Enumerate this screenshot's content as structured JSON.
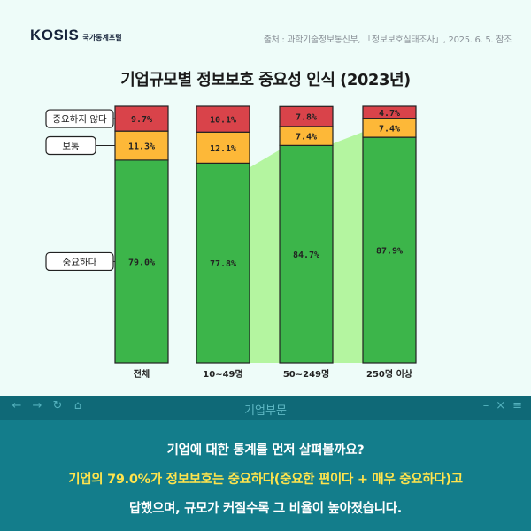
{
  "header": {
    "logo_main": "KOSIS",
    "logo_sub": "국가통계포털",
    "source": "출처 : 과학기술정보통신부, 「정보보호실태조사」, 2025. 6. 5. 참조"
  },
  "chart_data": {
    "type": "bar",
    "stacked": true,
    "title": "기업규모별 정보보호 중요성 인식 (2023년)",
    "categories": [
      "전체",
      "10~49명",
      "50~249명",
      "250명 이상"
    ],
    "series": [
      {
        "name": "중요하다",
        "values": [
          79.0,
          77.8,
          84.7,
          87.9
        ],
        "labels": [
          "79.0%",
          "77.8%",
          "84.7%",
          "87.9%"
        ],
        "color": "#3cb54a"
      },
      {
        "name": "보통",
        "values": [
          11.3,
          12.1,
          7.4,
          7.4
        ],
        "labels": [
          "11.3%",
          "12.1%",
          "7.4%",
          "7.4%"
        ],
        "color": "#fdb838"
      },
      {
        "name": "중요하지 않다",
        "values": [
          9.7,
          10.1,
          7.8,
          4.7
        ],
        "labels": [
          "9.7%",
          "10.1%",
          "7.8%",
          "4.7%"
        ],
        "color": "#d9434a"
      }
    ],
    "ylim": [
      0,
      100
    ],
    "legend": [
      "중요하지 않다",
      "보통",
      "중요하다"
    ],
    "highlight_color": "#b4f5a0"
  },
  "panel": {
    "title": "기업부문",
    "line1": "기업에 대한 통계를 먼저 살펴볼까요?",
    "line2": "기업의 79.0%가 정보보호는 중요하다(중요한 편이다 + 매우 중요하다)고",
    "line3": "답했으며, 규모가 커질수록 그 비율이 높아졌습니다."
  }
}
